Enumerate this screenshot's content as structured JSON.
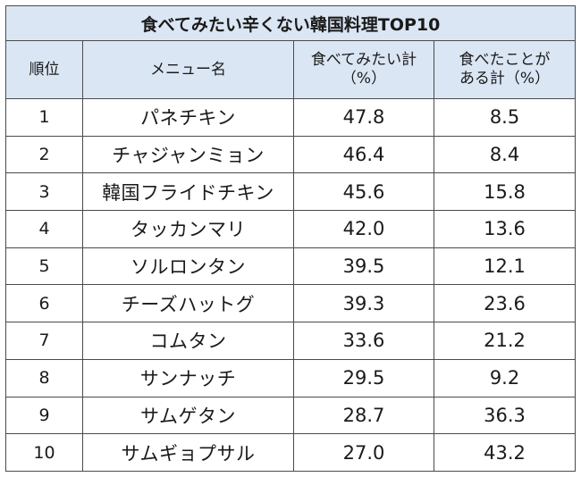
{
  "title": "食べてみたい辛くない韓国料理TOP10",
  "headers": {
    "rank": "順位",
    "menu": "メニュー名",
    "want_line1": "食べてみたい計",
    "want_line2": "（%）",
    "eaten_line1": "食べたことが",
    "eaten_line2": "ある計（%）"
  },
  "rows": [
    {
      "rank": "1",
      "name": "パネチキン",
      "want": "47.8",
      "eaten": "8.5"
    },
    {
      "rank": "2",
      "name": "チャジャンミョン",
      "want": "46.4",
      "eaten": "8.4"
    },
    {
      "rank": "3",
      "name": "韓国フライドチキン",
      "want": "45.6",
      "eaten": "15.8"
    },
    {
      "rank": "4",
      "name": "タッカンマリ",
      "want": "42.0",
      "eaten": "13.6"
    },
    {
      "rank": "5",
      "name": "ソルロンタン",
      "want": "39.5",
      "eaten": "12.1"
    },
    {
      "rank": "6",
      "name": "チーズハットグ",
      "want": "39.3",
      "eaten": "23.6"
    },
    {
      "rank": "7",
      "name": "コムタン",
      "want": "33.6",
      "eaten": "21.2"
    },
    {
      "rank": "8",
      "name": "サンナッチ",
      "want": "29.5",
      "eaten": "9.2"
    },
    {
      "rank": "9",
      "name": "サムゲタン",
      "want": "28.7",
      "eaten": "36.3"
    },
    {
      "rank": "10",
      "name": "サムギョプサル",
      "want": "27.0",
      "eaten": "43.2"
    }
  ]
}
